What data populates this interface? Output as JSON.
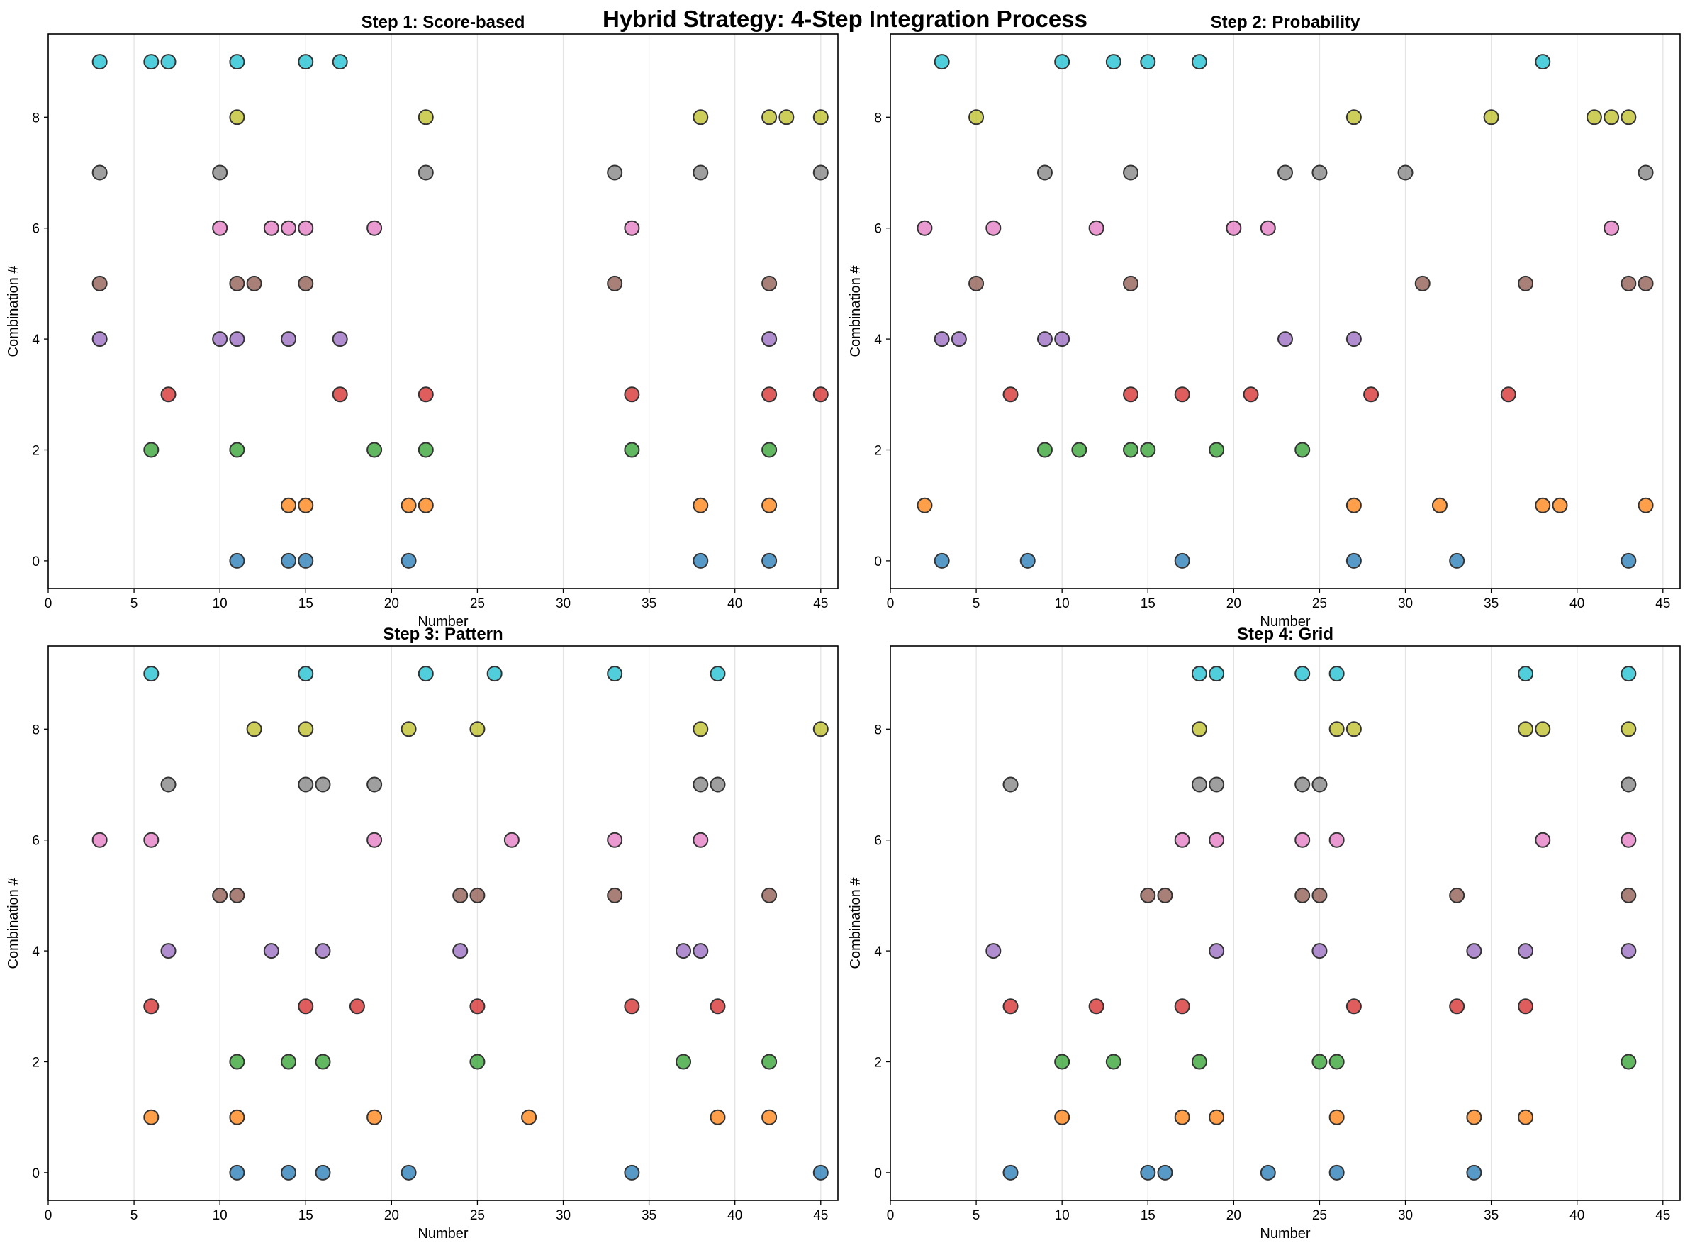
{
  "title": "Hybrid Strategy: 4-Step Integration Process",
  "colors": [
    "#1f77b4",
    "#ff7f0e",
    "#2ca02c",
    "#d62728",
    "#9467bd",
    "#8c564b",
    "#e377c2",
    "#7f7f7f",
    "#bcbd22",
    "#17becf"
  ],
  "chart_data": [
    {
      "type": "scatter",
      "title": "Step 1: Score-based",
      "xlabel": "Number",
      "ylabel": "Combination #",
      "xlim": [
        0,
        46
      ],
      "ylim": [
        -0.5,
        9.5
      ],
      "xticks": [
        0,
        5,
        10,
        15,
        20,
        25,
        30,
        35,
        40,
        45
      ],
      "yticks": [
        0,
        2,
        4,
        6,
        8
      ],
      "grid": "x",
      "combinations": [
        [
          11,
          14,
          15,
          21,
          38,
          42
        ],
        [
          14,
          15,
          21,
          22,
          38,
          42
        ],
        [
          6,
          11,
          19,
          22,
          34,
          42
        ],
        [
          7,
          17,
          22,
          34,
          42,
          45
        ],
        [
          3,
          10,
          11,
          14,
          17,
          42
        ],
        [
          3,
          11,
          12,
          15,
          33,
          42
        ],
        [
          10,
          13,
          14,
          15,
          19,
          34
        ],
        [
          3,
          10,
          22,
          33,
          38,
          45
        ],
        [
          11,
          22,
          38,
          42,
          43,
          45
        ],
        [
          3,
          6,
          7,
          11,
          15,
          17
        ]
      ]
    },
    {
      "type": "scatter",
      "title": "Step 2: Probability",
      "xlabel": "Number",
      "ylabel": "Combination #",
      "xlim": [
        0,
        46
      ],
      "ylim": [
        -0.5,
        9.5
      ],
      "xticks": [
        0,
        5,
        10,
        15,
        20,
        25,
        30,
        35,
        40,
        45
      ],
      "yticks": [
        0,
        2,
        4,
        6,
        8
      ],
      "grid": "x",
      "combinations": [
        [
          3,
          8,
          17,
          27,
          33,
          43
        ],
        [
          2,
          27,
          32,
          38,
          39,
          44
        ],
        [
          9,
          11,
          14,
          15,
          19,
          24
        ],
        [
          7,
          14,
          17,
          21,
          28,
          36
        ],
        [
          3,
          4,
          9,
          10,
          23,
          27
        ],
        [
          5,
          14,
          31,
          37,
          43,
          44
        ],
        [
          2,
          6,
          12,
          20,
          22,
          42
        ],
        [
          9,
          14,
          23,
          25,
          30,
          44
        ],
        [
          5,
          27,
          35,
          41,
          42,
          43
        ],
        [
          3,
          10,
          13,
          15,
          18,
          38
        ]
      ]
    },
    {
      "type": "scatter",
      "title": "Step 3: Pattern",
      "xlabel": "Number",
      "ylabel": "Combination #",
      "xlim": [
        0,
        46
      ],
      "ylim": [
        -0.5,
        9.5
      ],
      "xticks": [
        0,
        5,
        10,
        15,
        20,
        25,
        30,
        35,
        40,
        45
      ],
      "yticks": [
        0,
        2,
        4,
        6,
        8
      ],
      "grid": "x",
      "combinations": [
        [
          11,
          14,
          16,
          21,
          34,
          45
        ],
        [
          6,
          11,
          19,
          28,
          39,
          42
        ],
        [
          11,
          14,
          16,
          25,
          37,
          42
        ],
        [
          6,
          15,
          18,
          25,
          34,
          39
        ],
        [
          7,
          13,
          16,
          24,
          37,
          38
        ],
        [
          10,
          11,
          24,
          25,
          33,
          42
        ],
        [
          3,
          6,
          19,
          27,
          33,
          38
        ],
        [
          7,
          15,
          16,
          19,
          38,
          39
        ],
        [
          12,
          15,
          21,
          25,
          38,
          45
        ],
        [
          6,
          15,
          22,
          26,
          33,
          39
        ]
      ]
    },
    {
      "type": "scatter",
      "title": "Step 4: Grid",
      "xlabel": "Number",
      "ylabel": "Combination #",
      "xlim": [
        0,
        46
      ],
      "ylim": [
        -0.5,
        9.5
      ],
      "xticks": [
        0,
        5,
        10,
        15,
        20,
        25,
        30,
        35,
        40,
        45
      ],
      "yticks": [
        0,
        2,
        4,
        6,
        8
      ],
      "grid": "x",
      "combinations": [
        [
          7,
          15,
          16,
          22,
          26,
          34
        ],
        [
          10,
          17,
          19,
          26,
          34,
          37
        ],
        [
          10,
          13,
          18,
          25,
          26,
          43
        ],
        [
          7,
          12,
          17,
          27,
          33,
          37
        ],
        [
          6,
          19,
          25,
          34,
          37,
          43
        ],
        [
          15,
          16,
          24,
          25,
          33,
          43
        ],
        [
          17,
          19,
          24,
          26,
          38,
          43
        ],
        [
          7,
          18,
          19,
          24,
          25,
          43
        ],
        [
          18,
          26,
          27,
          37,
          38,
          43
        ],
        [
          18,
          19,
          24,
          26,
          37,
          43
        ]
      ]
    }
  ]
}
